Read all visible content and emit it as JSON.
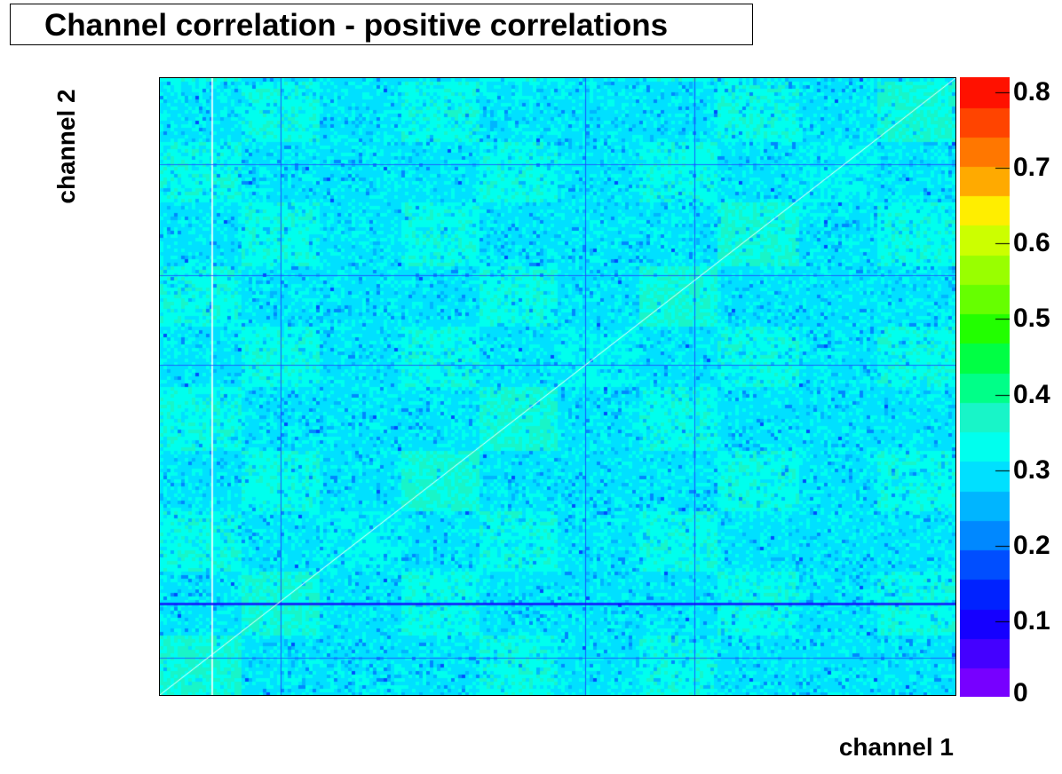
{
  "chart_data": {
    "type": "heatmap",
    "title": "Channel correlation - positive correlations",
    "xlabel": "channel 1",
    "ylabel": "channel 2",
    "zlim": [
      0,
      0.82
    ],
    "z_ticks": [
      "0",
      "0.1",
      "0.2",
      "0.3",
      "0.4",
      "0.5",
      "0.6",
      "0.7",
      "0.8"
    ],
    "z_tick_values": [
      0,
      0.1,
      0.2,
      0.3,
      0.4,
      0.5,
      0.6,
      0.7,
      0.8
    ],
    "palette": [
      "#7700ff",
      "#4400ff",
      "#1500ff",
      "#0022ff",
      "#004eff",
      "#0088ff",
      "#00b5ff",
      "#00e0ff",
      "#00ffee",
      "#18f5c8",
      "#00ff88",
      "#00ff44",
      "#22ff00",
      "#66ff00",
      "#99ff00",
      "#ccff00",
      "#ffee00",
      "#ffaa00",
      "#ff7700",
      "#ff4400",
      "#ff1100"
    ],
    "background_level": 0.3,
    "diagonal_value": 1.0,
    "block_enhanced_level": 0.35,
    "anomalous_channels_fraction": [
      0.065,
      0.152,
      0.535,
      0.672
    ],
    "anomalous_rows_fraction": [
      0.14,
      0.32,
      0.465,
      0.85,
      0.94
    ]
  }
}
